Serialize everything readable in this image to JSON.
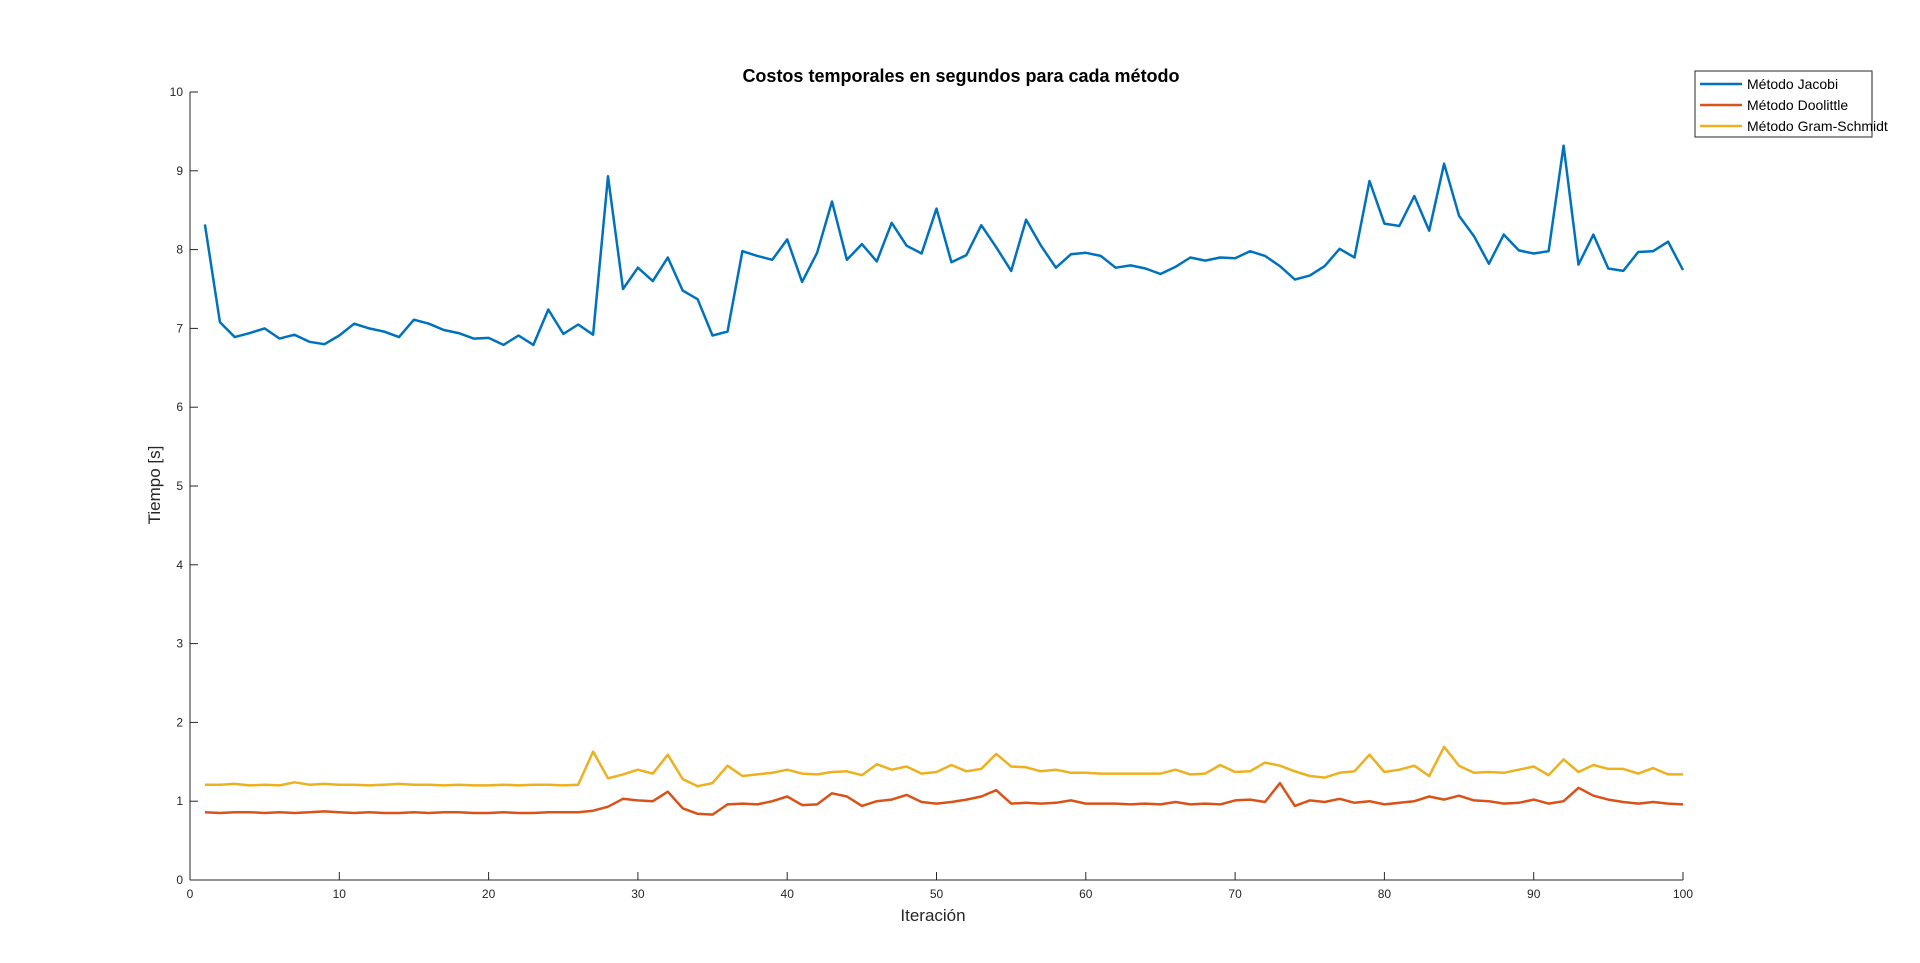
{
  "chart_data": {
    "type": "line",
    "title": "Costos temporales en segundos para cada método",
    "xlabel": "Iteración",
    "ylabel": "Tiempo [s]",
    "xlim": [
      0,
      100
    ],
    "ylim": [
      0,
      10
    ],
    "xticks": [
      0,
      10,
      20,
      30,
      40,
      50,
      60,
      70,
      80,
      90,
      100
    ],
    "yticks": [
      0,
      1,
      2,
      3,
      4,
      5,
      6,
      7,
      8,
      9,
      10
    ],
    "grid": false,
    "legend": "top-right",
    "x": [
      1,
      2,
      3,
      4,
      5,
      6,
      7,
      8,
      9,
      10,
      11,
      12,
      13,
      14,
      15,
      16,
      17,
      18,
      19,
      20,
      21,
      22,
      23,
      24,
      25,
      26,
      27,
      28,
      29,
      30,
      31,
      32,
      33,
      34,
      35,
      36,
      37,
      38,
      39,
      40,
      41,
      42,
      43,
      44,
      45,
      46,
      47,
      48,
      49,
      50,
      51,
      52,
      53,
      54,
      55,
      56,
      57,
      58,
      59,
      60,
      61,
      62,
      63,
      64,
      65,
      66,
      67,
      68,
      69,
      70,
      71,
      72,
      73,
      74,
      75,
      76,
      77,
      78,
      79,
      80,
      81,
      82,
      83,
      84,
      85,
      86,
      87,
      88,
      89,
      90,
      91,
      92,
      93,
      94,
      95,
      96,
      97,
      98,
      99,
      100
    ],
    "series": [
      {
        "name": "Método Jacobi",
        "color": "#0072BD",
        "values": [
          8.32,
          7.08,
          6.89,
          6.94,
          7.0,
          6.87,
          6.92,
          6.83,
          6.8,
          6.91,
          7.06,
          7.0,
          6.96,
          6.89,
          7.11,
          7.06,
          6.98,
          6.94,
          6.87,
          6.88,
          6.79,
          6.91,
          6.79,
          7.24,
          6.93,
          7.05,
          6.92,
          8.93,
          7.5,
          7.77,
          7.6,
          7.9,
          7.48,
          7.37,
          6.91,
          6.96,
          7.98,
          7.92,
          7.87,
          8.13,
          7.59,
          7.96,
          8.61,
          7.87,
          8.07,
          7.85,
          8.34,
          8.05,
          7.95,
          8.52,
          7.84,
          7.93,
          8.31,
          8.03,
          7.73,
          8.38,
          8.05,
          7.77,
          7.94,
          7.96,
          7.92,
          7.77,
          7.8,
          7.76,
          7.69,
          7.78,
          7.9,
          7.86,
          7.9,
          7.89,
          7.98,
          7.92,
          7.79,
          7.62,
          7.67,
          7.79,
          8.01,
          7.9,
          8.87,
          8.33,
          8.3,
          8.68,
          8.24,
          9.09,
          8.43,
          8.17,
          7.82,
          8.19,
          7.99,
          7.95,
          7.98,
          9.32,
          7.81,
          8.19,
          7.76,
          7.73,
          7.97,
          7.98,
          8.1,
          7.74
        ]
      },
      {
        "name": "Método Doolittle",
        "color": "#D95319",
        "values": [
          0.86,
          0.85,
          0.86,
          0.86,
          0.85,
          0.86,
          0.85,
          0.86,
          0.87,
          0.86,
          0.85,
          0.86,
          0.85,
          0.85,
          0.86,
          0.85,
          0.86,
          0.86,
          0.85,
          0.85,
          0.86,
          0.85,
          0.85,
          0.86,
          0.86,
          0.86,
          0.88,
          0.93,
          1.03,
          1.01,
          1.0,
          1.12,
          0.91,
          0.84,
          0.83,
          0.96,
          0.97,
          0.96,
          1.0,
          1.06,
          0.95,
          0.96,
          1.1,
          1.06,
          0.94,
          1.0,
          1.02,
          1.08,
          0.99,
          0.97,
          0.99,
          1.02,
          1.06,
          1.14,
          0.97,
          0.98,
          0.97,
          0.98,
          1.01,
          0.97,
          0.97,
          0.97,
          0.96,
          0.97,
          0.96,
          0.99,
          0.96,
          0.97,
          0.96,
          1.01,
          1.02,
          0.99,
          1.23,
          0.94,
          1.01,
          0.99,
          1.03,
          0.98,
          1.0,
          0.96,
          0.98,
          1.0,
          1.06,
          1.02,
          1.07,
          1.01,
          1.0,
          0.97,
          0.98,
          1.02,
          0.97,
          1.0,
          1.17,
          1.07,
          1.02,
          0.99,
          0.97,
          0.99,
          0.97,
          0.96
        ]
      },
      {
        "name": "Método Gram-Schmidt",
        "color": "#EDB120",
        "values": [
          1.21,
          1.21,
          1.22,
          1.2,
          1.21,
          1.2,
          1.24,
          1.21,
          1.22,
          1.21,
          1.21,
          1.2,
          1.21,
          1.22,
          1.21,
          1.21,
          1.2,
          1.21,
          1.2,
          1.2,
          1.21,
          1.2,
          1.21,
          1.21,
          1.2,
          1.21,
          1.63,
          1.29,
          1.34,
          1.4,
          1.35,
          1.59,
          1.28,
          1.19,
          1.23,
          1.45,
          1.32,
          1.34,
          1.36,
          1.4,
          1.35,
          1.34,
          1.37,
          1.38,
          1.33,
          1.47,
          1.4,
          1.44,
          1.35,
          1.37,
          1.46,
          1.38,
          1.41,
          1.6,
          1.44,
          1.43,
          1.38,
          1.4,
          1.36,
          1.36,
          1.35,
          1.35,
          1.35,
          1.35,
          1.35,
          1.4,
          1.34,
          1.35,
          1.46,
          1.37,
          1.38,
          1.49,
          1.45,
          1.38,
          1.32,
          1.3,
          1.36,
          1.38,
          1.59,
          1.37,
          1.4,
          1.45,
          1.32,
          1.69,
          1.45,
          1.36,
          1.37,
          1.36,
          1.4,
          1.44,
          1.33,
          1.53,
          1.37,
          1.46,
          1.41,
          1.41,
          1.35,
          1.42,
          1.34,
          1.34
        ]
      }
    ]
  }
}
